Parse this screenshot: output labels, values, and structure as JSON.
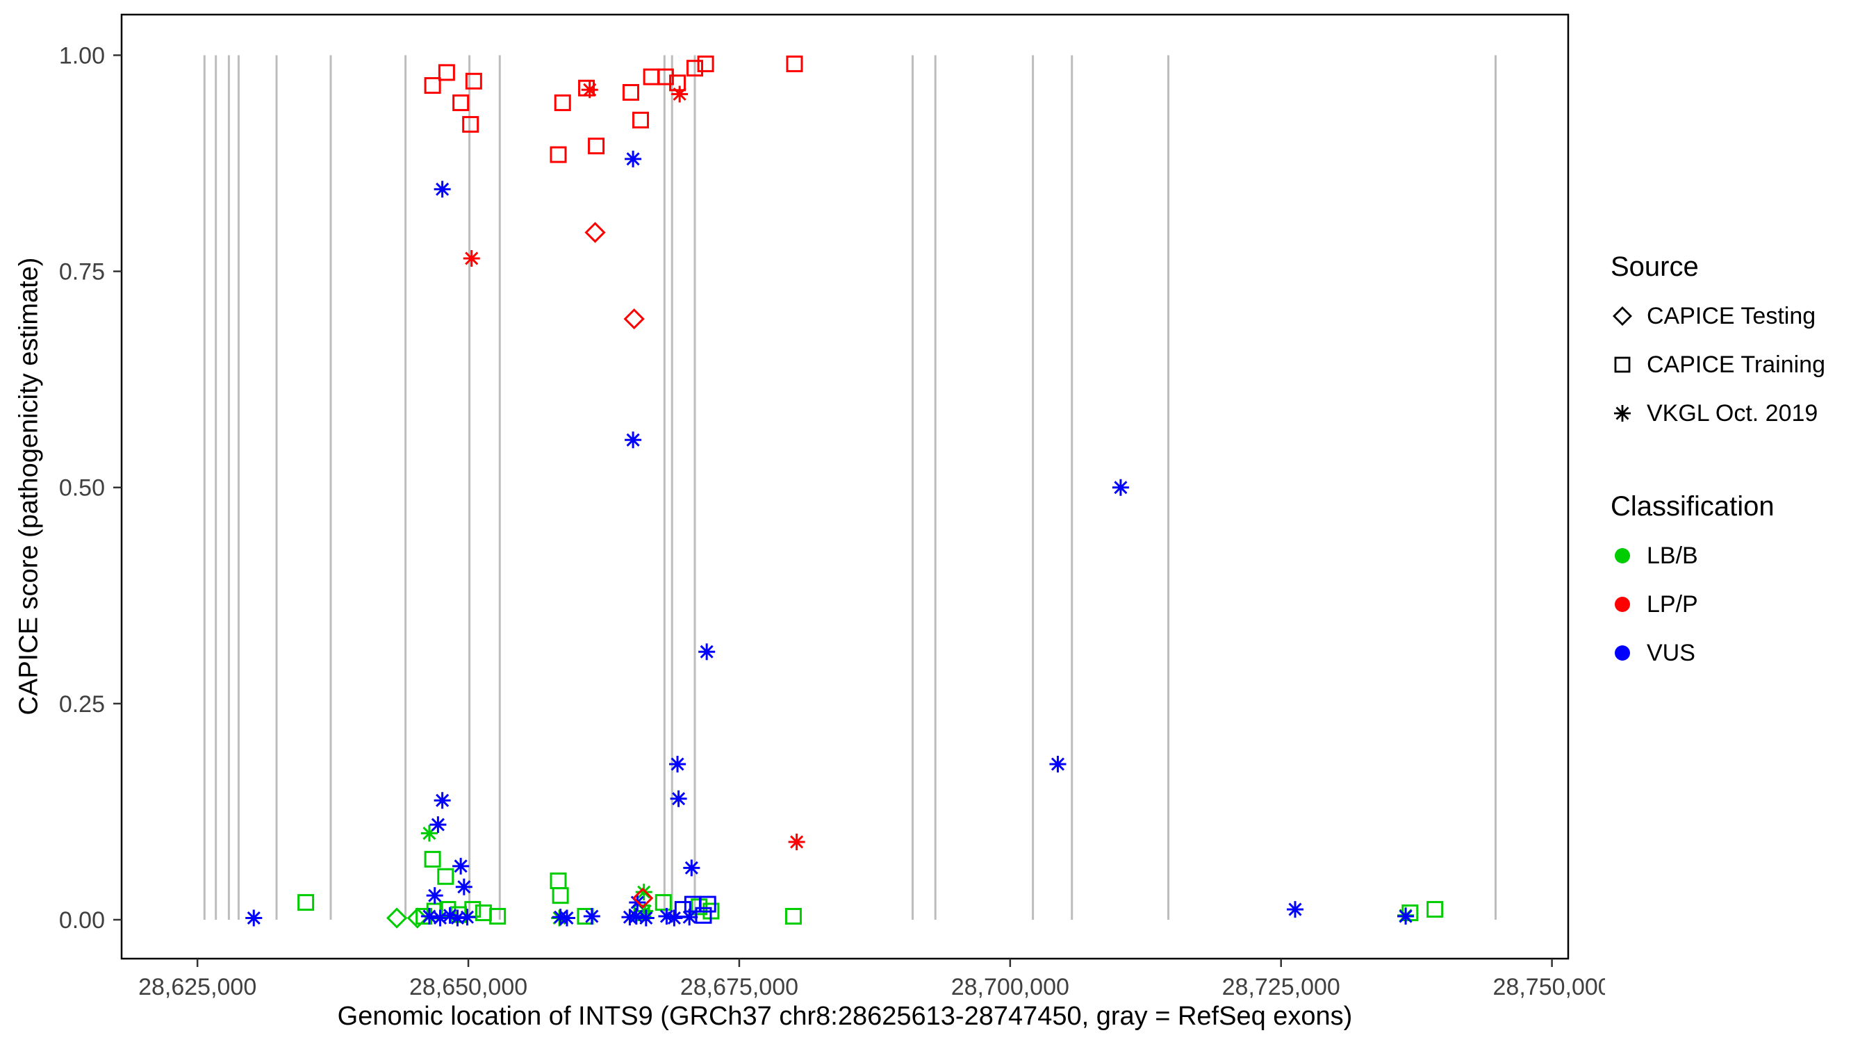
{
  "axes": {
    "x": {
      "label": "Genomic location of INTS9 (GRCh37 chr8:28625613-28747450, gray = RefSeq exons)",
      "ticks": [
        28625000,
        28650000,
        28675000,
        28700000,
        28725000,
        28750000
      ],
      "tick_labels": [
        "28,625,000",
        "28,650,000",
        "28,675,000",
        "28,700,000",
        "28,725,000",
        "28,750,000"
      ],
      "domain": [
        28618000,
        28751500
      ]
    },
    "y": {
      "label": "CAPICE score (pathogenicity estimate)",
      "ticks": [
        0,
        0.25,
        0.5,
        0.75,
        1
      ],
      "tick_labels": [
        "0.00",
        "0.25",
        "0.50",
        "0.75",
        "1.00"
      ],
      "domain": [
        -0.045,
        1.047
      ]
    }
  },
  "legend": {
    "source": {
      "title": "Source",
      "items": [
        {
          "label": "CAPICE Testing",
          "shape": "diamond"
        },
        {
          "label": "CAPICE Training",
          "shape": "square"
        },
        {
          "label": "VKGL Oct. 2019",
          "shape": "asterisk"
        }
      ]
    },
    "classification": {
      "title": "Classification",
      "items": [
        {
          "label": "LB/B",
          "color": "#00CD00"
        },
        {
          "label": "LP/P",
          "color": "#FF0000"
        },
        {
          "label": "VUS",
          "color": "#0000FF"
        }
      ]
    }
  },
  "chart_data": {
    "type": "scatter",
    "title": "",
    "xlabel": "Genomic location of INTS9 (GRCh37 chr8:28625613-28747450, gray = RefSeq exons)",
    "ylabel": "CAPICE score (pathogenicity estimate)",
    "xlim": [
      28618000,
      28751500
    ],
    "ylim": [
      -0.045,
      1.047
    ],
    "grid": false,
    "legend_position": "right",
    "exon_color": "#BDBDBD",
    "exons": [
      28625650,
      28626700,
      28627900,
      28628800,
      28632300,
      28637300,
      28644200,
      28650100,
      28652900,
      28668100,
      28668800,
      28670900,
      28691000,
      28693100,
      28702100,
      28705700,
      28714600,
      28744800
    ],
    "points_format": [
      "genomic_position",
      "capice_score",
      "classification",
      "source"
    ],
    "points": [
      [
        28635000,
        0.02,
        "LB/B",
        "Training"
      ],
      [
        28646700,
        0.07,
        "LB/B",
        "Training"
      ],
      [
        28647900,
        0.05,
        "LB/B",
        "Training"
      ],
      [
        28658300,
        0.045,
        "LB/B",
        "Training"
      ],
      [
        28658500,
        0.028,
        "LB/B",
        "Training"
      ],
      [
        28645900,
        0.004,
        "LB/B",
        "Training"
      ],
      [
        28646900,
        0.01,
        "LB/B",
        "Training"
      ],
      [
        28648100,
        0.012,
        "LB/B",
        "Training"
      ],
      [
        28649100,
        0.006,
        "LB/B",
        "Training"
      ],
      [
        28650400,
        0.012,
        "LB/B",
        "Training"
      ],
      [
        28651400,
        0.008,
        "LB/B",
        "Training"
      ],
      [
        28652700,
        0.004,
        "LB/B",
        "Training"
      ],
      [
        28660800,
        0.004,
        "LB/B",
        "Training"
      ],
      [
        28666000,
        0.008,
        "LB/B",
        "Training"
      ],
      [
        28668000,
        0.02,
        "LB/B",
        "Training"
      ],
      [
        28671300,
        0.015,
        "LB/B",
        "Training"
      ],
      [
        28672400,
        0.01,
        "LB/B",
        "Training"
      ],
      [
        28680000,
        0.004,
        "LB/B",
        "Training"
      ],
      [
        28736900,
        0.008,
        "LB/B",
        "Training"
      ],
      [
        28739200,
        0.012,
        "LB/B",
        "Training"
      ],
      [
        28646400,
        0.1,
        "LB/B",
        "VKGL"
      ],
      [
        28666200,
        0.032,
        "LB/B",
        "VKGL"
      ],
      [
        28736500,
        0.005,
        "LB/B",
        "VKGL"
      ],
      [
        28658400,
        0.002,
        "LB/B",
        "VKGL"
      ],
      [
        28666300,
        0.01,
        "LB/B",
        "VKGL"
      ],
      [
        28643400,
        0.002,
        "LB/B",
        "Testing"
      ],
      [
        28645300,
        0.002,
        "LB/B",
        "Testing"
      ],
      [
        28647600,
        0.845,
        "VUS",
        "VKGL"
      ],
      [
        28665200,
        0.88,
        "VUS",
        "VKGL"
      ],
      [
        28665200,
        0.555,
        "VUS",
        "VKGL"
      ],
      [
        28672000,
        0.31,
        "VUS",
        "VKGL"
      ],
      [
        28710200,
        0.5,
        "VUS",
        "VKGL"
      ],
      [
        28704400,
        0.18,
        "VUS",
        "VKGL"
      ],
      [
        28669300,
        0.18,
        "VUS",
        "VKGL"
      ],
      [
        28669400,
        0.14,
        "VUS",
        "VKGL"
      ],
      [
        28647600,
        0.138,
        "VUS",
        "VKGL"
      ],
      [
        28647200,
        0.11,
        "VUS",
        "VKGL"
      ],
      [
        28649300,
        0.062,
        "VUS",
        "VKGL"
      ],
      [
        28670600,
        0.06,
        "VUS",
        "VKGL"
      ],
      [
        28649600,
        0.038,
        "VUS",
        "VKGL"
      ],
      [
        28646900,
        0.028,
        "VUS",
        "VKGL"
      ],
      [
        28665600,
        0.02,
        "VUS",
        "VKGL"
      ],
      [
        28630200,
        0.002,
        "VUS",
        "VKGL"
      ],
      [
        28646400,
        0.004,
        "VUS",
        "VKGL"
      ],
      [
        28647400,
        0.002,
        "VUS",
        "VKGL"
      ],
      [
        28648300,
        0.005,
        "VUS",
        "VKGL"
      ],
      [
        28649000,
        0.002,
        "VUS",
        "VKGL"
      ],
      [
        28649900,
        0.003,
        "VUS",
        "VKGL"
      ],
      [
        28658500,
        0.003,
        "VUS",
        "VKGL"
      ],
      [
        28659100,
        0.002,
        "VUS",
        "VKGL"
      ],
      [
        28661400,
        0.004,
        "VUS",
        "VKGL"
      ],
      [
        28664900,
        0.003,
        "VUS",
        "VKGL"
      ],
      [
        28665500,
        0.004,
        "VUS",
        "VKGL"
      ],
      [
        28666400,
        0.002,
        "VUS",
        "VKGL"
      ],
      [
        28668300,
        0.004,
        "VUS",
        "VKGL"
      ],
      [
        28669000,
        0.002,
        "VUS",
        "VKGL"
      ],
      [
        28670400,
        0.003,
        "VUS",
        "VKGL"
      ],
      [
        28726300,
        0.012,
        "VUS",
        "VKGL"
      ],
      [
        28736500,
        0.004,
        "VUS",
        "VKGL"
      ],
      [
        28669800,
        0.012,
        "VUS",
        "Training"
      ],
      [
        28670700,
        0.018,
        "VUS",
        "Training"
      ],
      [
        28672100,
        0.018,
        "VUS",
        "Training"
      ],
      [
        28671700,
        0.005,
        "VUS",
        "Training"
      ],
      [
        28646700,
        0.965,
        "LP/P",
        "Training"
      ],
      [
        28648000,
        0.98,
        "LP/P",
        "Training"
      ],
      [
        28649300,
        0.945,
        "LP/P",
        "Training"
      ],
      [
        28650200,
        0.92,
        "LP/P",
        "Training"
      ],
      [
        28650500,
        0.97,
        "LP/P",
        "Training"
      ],
      [
        28658300,
        0.885,
        "LP/P",
        "Training"
      ],
      [
        28658700,
        0.945,
        "LP/P",
        "Training"
      ],
      [
        28660900,
        0.962,
        "LP/P",
        "Training"
      ],
      [
        28661800,
        0.895,
        "LP/P",
        "Training"
      ],
      [
        28665000,
        0.957,
        "LP/P",
        "Training"
      ],
      [
        28665900,
        0.925,
        "LP/P",
        "Training"
      ],
      [
        28666900,
        0.975,
        "LP/P",
        "Training"
      ],
      [
        28668200,
        0.975,
        "LP/P",
        "Training"
      ],
      [
        28669300,
        0.968,
        "LP/P",
        "Training"
      ],
      [
        28670900,
        0.985,
        "LP/P",
        "Training"
      ],
      [
        28671900,
        0.99,
        "LP/P",
        "Training"
      ],
      [
        28680100,
        0.99,
        "LP/P",
        "Training"
      ],
      [
        28650300,
        0.765,
        "LP/P",
        "VKGL"
      ],
      [
        28661200,
        0.96,
        "LP/P",
        "VKGL"
      ],
      [
        28669500,
        0.955,
        "LP/P",
        "VKGL"
      ],
      [
        28680300,
        0.09,
        "LP/P",
        "VKGL"
      ],
      [
        28661700,
        0.795,
        "LP/P",
        "Testing"
      ],
      [
        28665300,
        0.695,
        "LP/P",
        "Testing"
      ],
      [
        28666100,
        0.025,
        "LP/P",
        "Testing"
      ]
    ]
  }
}
